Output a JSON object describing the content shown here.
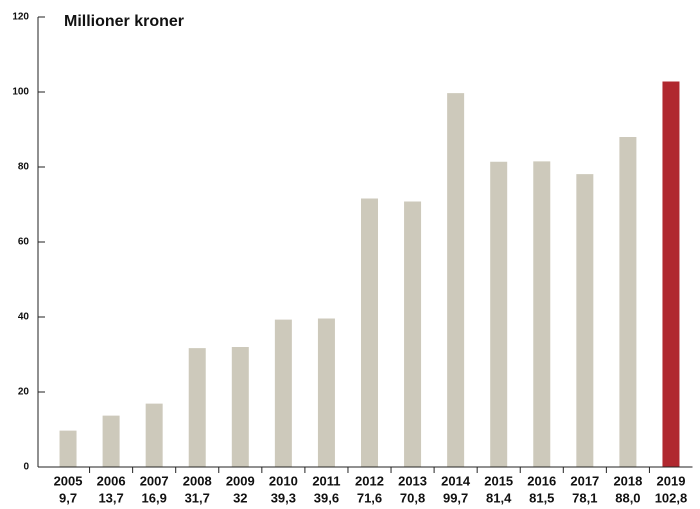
{
  "chart_data": {
    "type": "bar",
    "title": "Millioner kroner",
    "categories": [
      "2005",
      "2006",
      "2007",
      "2008",
      "2009",
      "2010",
      "2011",
      "2012",
      "2013",
      "2014",
      "2015",
      "2016",
      "2017",
      "2018",
      "2019"
    ],
    "values": [
      9.7,
      13.7,
      16.9,
      31.7,
      32,
      39.3,
      39.6,
      71.6,
      70.8,
      99.7,
      81.4,
      81.5,
      78.1,
      88.0,
      102.8
    ],
    "value_labels": [
      "9,7",
      "13,7",
      "16,9",
      "31,7",
      "32",
      "39,3",
      "39,6",
      "71,6",
      "70,8",
      "99,7",
      "81,4",
      "81,5",
      "78,1",
      "88,0",
      "102,8"
    ],
    "colors": [
      "#cdc9bb",
      "#cdc9bb",
      "#cdc9bb",
      "#cdc9bb",
      "#cdc9bb",
      "#cdc9bb",
      "#cdc9bb",
      "#cdc9bb",
      "#cdc9bb",
      "#cdc9bb",
      "#cdc9bb",
      "#cdc9bb",
      "#cdc9bb",
      "#cdc9bb",
      "#b0282f"
    ],
    "ylim": [
      0,
      120
    ],
    "yticks": [
      0,
      20,
      40,
      60,
      80,
      100,
      120
    ],
    "grid": false
  }
}
